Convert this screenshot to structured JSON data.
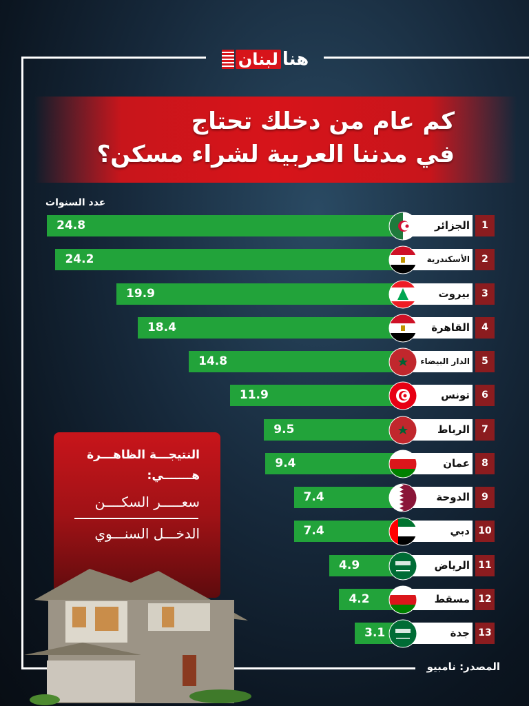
{
  "logo": {
    "part1": "هنا",
    "part2": "لبنان"
  },
  "title_lines": [
    "كم عام من دخلك تحتاج",
    "في مدننا العربية لشراء مسكن؟"
  ],
  "chart_data": {
    "type": "bar",
    "orientation": "horizontal",
    "ylabel": "عدد السنوات",
    "ranks": [
      "1",
      "2",
      "3",
      "4",
      "5",
      "6",
      "7",
      "8",
      "9",
      "10",
      "11",
      "12",
      "13"
    ],
    "categories": [
      "الجزائر",
      "الأسكندرية",
      "بيروت",
      "القاهرة",
      "الدار البيضاء",
      "تونس",
      "الرباط",
      "عمان",
      "الدوحة",
      "دبي",
      "الرياض",
      "مسقط",
      "جدة"
    ],
    "values": [
      24.8,
      24.2,
      19.9,
      18.4,
      14.8,
      11.9,
      9.5,
      9.4,
      7.4,
      7.4,
      4.9,
      4.2,
      3.1
    ],
    "value_labels": [
      "24.8",
      "24.2",
      "19.9",
      "18.4",
      "14.8",
      "11.9",
      "9.5",
      "9.4",
      "7.4",
      "7.4",
      "4.9",
      "4.2",
      "3.1"
    ],
    "flags": [
      "algeria-flag-icon",
      "egypt-flag-icon",
      "lebanon-flag-icon",
      "egypt-flag-icon",
      "morocco-flag-icon",
      "tunisia-flag-icon",
      "morocco-flag-icon",
      "oman-flag-icon",
      "qatar-flag-icon",
      "uae-flag-icon",
      "saudi-flag-icon",
      "oman-flag-icon",
      "saudi-flag-icon"
    ],
    "bar_color": "#22a33a",
    "rank_color": "#8b1c1f"
  },
  "note": {
    "line1": "النتيجـــة الظاهـــرة",
    "line2": "هـــــــي:",
    "numerator": "سعـــــر السكــــن",
    "denominator": "الدخـــل السنـــوي"
  },
  "source": "المصدر: نامبيو",
  "colors": {
    "accent_red": "#d7141a",
    "background": "#16283a"
  }
}
